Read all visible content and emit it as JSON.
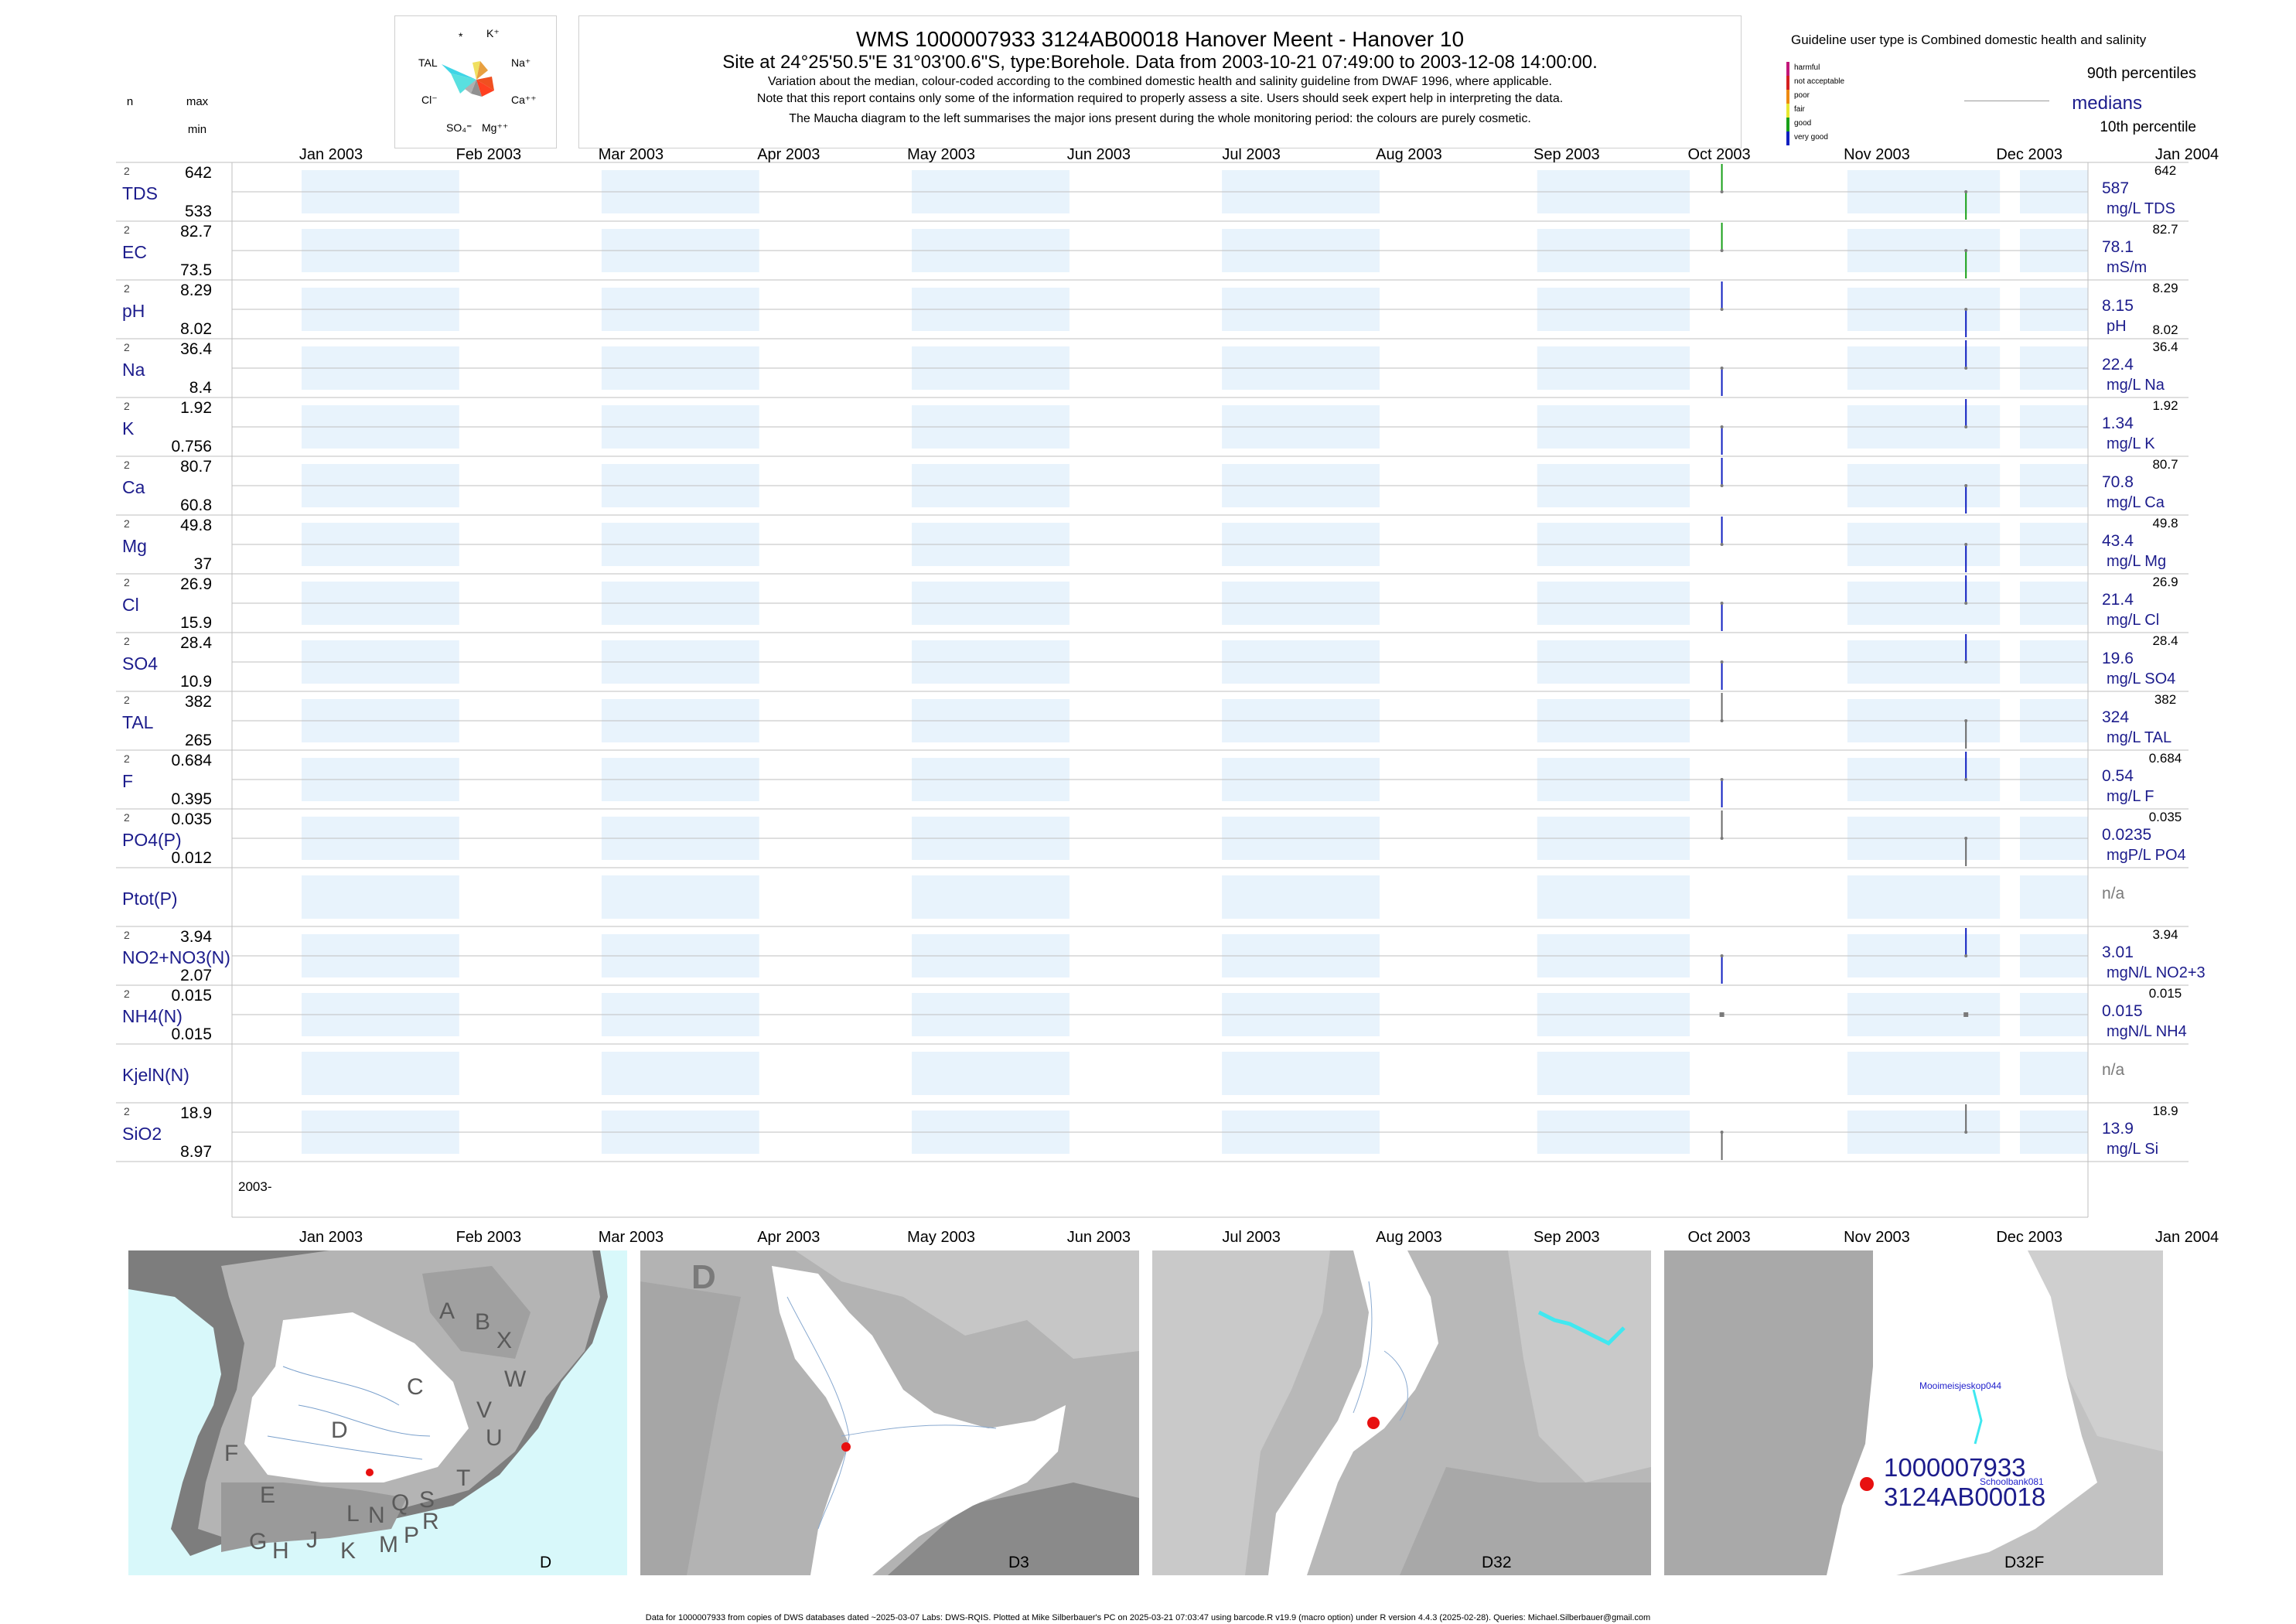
{
  "header": {
    "title": "WMS 1000007933 3124AB00018 Hanover Meent - Hanover 10",
    "subtitle": "Site at 24°25'50.5\"E 31°03'00.6\"S, type:Borehole.  Data from 2003-10-21 07:49:00 to 2003-12-08 14:00:00.",
    "note1": "Variation about the median,  colour-coded according to the combined domestic health and salinity guideline from DWAF 1996, where applicable.",
    "note2": "Note that this report contains only some of the information required to properly assess a site. Users should seek expert help in interpreting the data.",
    "note3": "The Maucha diagram to the left summarises the major ions present during the whole monitoring period: the colours are purely cosmetic."
  },
  "maucha": {
    "labels": {
      "star": "*",
      "k": "K⁺",
      "na": "Na⁺",
      "ca": "Ca⁺⁺",
      "mg": "Mg⁺⁺",
      "so4": "SO₄⁼",
      "cl": "Cl⁻",
      "tal": "TAL"
    }
  },
  "legend": {
    "guideline_title": "Guideline user type is Combined domestic health and salinity",
    "p90": "90th percentiles",
    "medians": "medians",
    "p10": "10th percentile",
    "levels": [
      "harmful",
      "not acceptable",
      "poor",
      "fair",
      "good",
      "very good"
    ],
    "level_colors": [
      "#c2187a",
      "#d42020",
      "#ee8a10",
      "#e8e830",
      "#18a018",
      "#1020c0"
    ]
  },
  "columns": {
    "n": "n",
    "max": "max",
    "min": "min"
  },
  "footer": "Data for 1000007933 from copies of DWS databases dated ~2025-03-07 Labs: DWS-RQIS. Plotted at Mike Silberbauer's PC on 2025-03-21 07:03:47 using barcode.R v19.9 (macro option) under R version 4.4.3 (2025-02-28). Queries: Michael.Silberbauer@gmail.com",
  "maps": [
    {
      "label": "D",
      "letters": [
        "A",
        "B",
        "X",
        "W",
        "C",
        "V",
        "U",
        "T",
        "D",
        "F",
        "E",
        "G",
        "H",
        "J",
        "K",
        "L",
        "M",
        "N",
        "P",
        "Q",
        "R",
        "S"
      ]
    },
    {
      "label": "D3",
      "big_letter": "D"
    },
    {
      "label": "D32"
    },
    {
      "label": "D32F",
      "site_id": "1000007933",
      "site_code": "3124AB00018",
      "towns": [
        "Mooimeisjeskop044",
        "Schoolbank081"
      ]
    }
  ],
  "colors": {
    "navy": "#1c1c8c",
    "band": "#e8f3fc",
    "grid": "#bfbfbf",
    "marker": "#7a7a7a"
  },
  "chart_data": {
    "type": "table",
    "x_range": [
      "2003-01-01",
      "2004-01-01"
    ],
    "x_tick_labels": [
      "Jan 2003",
      "Feb 2003",
      "Mar 2003",
      "Apr 2003",
      "May 2003",
      "Jun 2003",
      "Jul 2003",
      "Aug 2003",
      "Sep 2003",
      "Oct 2003",
      "Nov 2003",
      "Dec 2003",
      "Jan 2004"
    ],
    "year_label": "2003-",
    "sample_dates": [
      "2003-10-21",
      "2003-12-08"
    ],
    "rows": [
      {
        "label": "TDS",
        "n": "2",
        "max": "642",
        "min": "533",
        "median": "587",
        "unit": "mg/L TDS",
        "values": [
          642,
          533
        ],
        "colors": [
          "#18a018",
          "#18a018"
        ]
      },
      {
        "label": "EC",
        "n": "2",
        "max": "82.7",
        "min": "73.5",
        "median": "78.1",
        "unit": "mS/m",
        "values": [
          82.7,
          73.5
        ],
        "colors": [
          "#18a018",
          "#18a018"
        ]
      },
      {
        "label": "pH",
        "n": "2",
        "max": "8.29",
        "min": "8.02",
        "median": "8.15",
        "unit": "pH",
        "values": [
          8.29,
          8.02
        ],
        "colors": [
          "#1020c0",
          "#1020c0"
        ]
      },
      {
        "label": "Na",
        "n": "2",
        "max": "36.4",
        "min": "8.4",
        "median": "22.4",
        "unit": "mg/L Na",
        "values": [
          8.4,
          36.4
        ],
        "colors": [
          "#1020c0",
          "#1020c0"
        ]
      },
      {
        "label": "K",
        "n": "2",
        "max": "1.92",
        "min": "0.756",
        "median": "1.34",
        "unit": "mg/L K",
        "values": [
          0.756,
          1.92
        ],
        "colors": [
          "#1020c0",
          "#1020c0"
        ]
      },
      {
        "label": "Ca",
        "n": "2",
        "max": "80.7",
        "min": "60.8",
        "median": "70.8",
        "unit": "mg/L Ca",
        "values": [
          80.7,
          60.8
        ],
        "colors": [
          "#1020c0",
          "#1020c0"
        ]
      },
      {
        "label": "Mg",
        "n": "2",
        "max": "49.8",
        "min": "37",
        "median": "43.4",
        "unit": "mg/L Mg",
        "values": [
          49.8,
          37
        ],
        "colors": [
          "#1020c0",
          "#1020c0"
        ]
      },
      {
        "label": "Cl",
        "n": "2",
        "max": "26.9",
        "min": "15.9",
        "median": "21.4",
        "unit": "mg/L Cl",
        "values": [
          15.9,
          26.9
        ],
        "colors": [
          "#1020c0",
          "#1020c0"
        ]
      },
      {
        "label": "SO4",
        "n": "2",
        "max": "28.4",
        "min": "10.9",
        "median": "19.6",
        "unit": "mg/L SO4",
        "values": [
          10.9,
          28.4
        ],
        "colors": [
          "#1020c0",
          "#1020c0"
        ]
      },
      {
        "label": "TAL",
        "n": "2",
        "max": "382",
        "min": "265",
        "median": "324",
        "unit": "mg/L TAL",
        "values": [
          382,
          265
        ],
        "colors": [
          "#6a6a6a",
          "#6a6a6a"
        ]
      },
      {
        "label": "F",
        "n": "2",
        "max": "0.684",
        "min": "0.395",
        "median": "0.54",
        "unit": "mg/L F",
        "values": [
          0.395,
          0.684
        ],
        "colors": [
          "#1020c0",
          "#1020c0"
        ]
      },
      {
        "label": "PO4(P)",
        "n": "2",
        "max": "0.035",
        "min": "0.012",
        "median": "0.0235",
        "unit": "mgP/L PO4",
        "values": [
          0.035,
          0.012
        ],
        "colors": [
          "#6a6a6a",
          "#6a6a6a"
        ]
      },
      {
        "label": "Ptot(P)",
        "n": "",
        "max": "",
        "min": "",
        "median": "n/a",
        "unit": "",
        "values": [],
        "colors": []
      },
      {
        "label": "NO2+NO3(N)",
        "n": "2",
        "max": "3.94",
        "min": "2.07",
        "median": "3.01",
        "unit": "mgN/L NO2+3",
        "values": [
          2.07,
          3.94
        ],
        "colors": [
          "#1020c0",
          "#1020c0"
        ]
      },
      {
        "label": "NH4(N)",
        "n": "2",
        "max": "0.015",
        "min": "0.015",
        "median": "0.015",
        "unit": "mgN/L NH4",
        "values": [
          0.015,
          0.015
        ],
        "colors": [
          "#6a6a6a",
          "#6a6a6a"
        ]
      },
      {
        "label": "KjelN(N)",
        "n": "",
        "max": "",
        "min": "",
        "median": "n/a",
        "unit": "",
        "values": [],
        "colors": []
      },
      {
        "label": "SiO2",
        "n": "2",
        "max": "18.9",
        "min": "8.97",
        "median": "13.9",
        "unit": "mg/L Si",
        "values": [
          8.97,
          18.9
        ],
        "colors": [
          "#6a6a6a",
          "#6a6a6a"
        ]
      }
    ]
  }
}
